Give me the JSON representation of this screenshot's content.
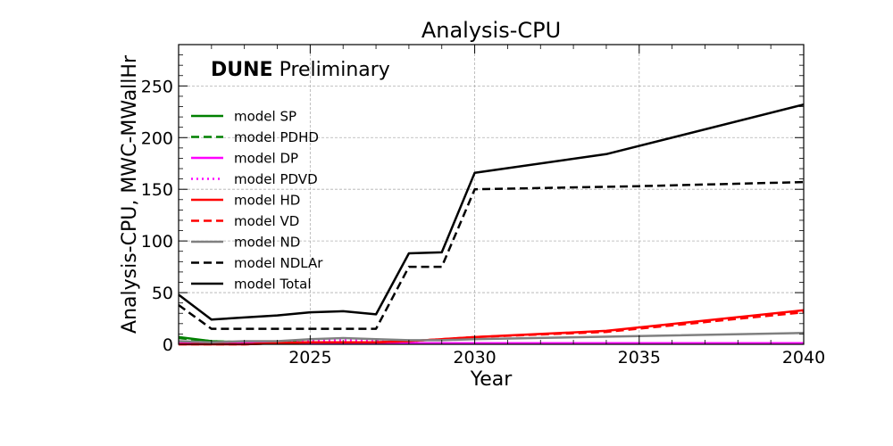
{
  "chart_data": {
    "type": "line",
    "title": "Analysis-CPU",
    "xlabel": "Year",
    "ylabel": "Analysis-CPU, MWC-MWallHr",
    "xlim": [
      2021,
      2040
    ],
    "ylim": [
      0,
      290
    ],
    "x_ticks": [
      2025,
      2030,
      2035,
      2040
    ],
    "y_ticks": [
      0,
      50,
      100,
      150,
      200,
      250
    ],
    "grid": true,
    "legend_position": "top-left",
    "annotation": {
      "bold": "DUNE",
      "rest": " Preliminary"
    },
    "series": [
      {
        "name": "model SP",
        "color": "#008000",
        "dash": "solid",
        "x": [
          2021,
          2022,
          2023,
          2024,
          2025,
          2026,
          2027,
          2028
        ],
        "y": [
          7,
          3,
          2,
          2,
          2,
          2,
          2,
          1
        ]
      },
      {
        "name": "model PDHD",
        "color": "#008000",
        "dash": "dashed",
        "x": [
          2021,
          2022,
          2023,
          2024,
          2025,
          2026,
          2027,
          2028
        ],
        "y": [
          6,
          3,
          2,
          2,
          2,
          2,
          2,
          1
        ]
      },
      {
        "name": "model DP",
        "color": "#ff00ff",
        "dash": "solid",
        "x": [
          2021,
          2022,
          2023,
          2024,
          2025,
          2026,
          2027,
          2028,
          2029,
          2030,
          2035,
          2040
        ],
        "y": [
          1,
          1,
          1,
          1,
          1,
          1,
          1,
          1,
          1,
          1,
          1,
          1
        ]
      },
      {
        "name": "model PDVD",
        "color": "#ff00ff",
        "dash": "dotted",
        "x": [
          2021,
          2022,
          2023,
          2024,
          2025,
          2026,
          2027,
          2028,
          2029,
          2030,
          2035,
          2040
        ],
        "y": [
          1,
          1,
          1,
          2,
          4,
          4,
          3,
          1,
          1,
          1,
          1,
          1
        ]
      },
      {
        "name": "model HD",
        "color": "#ff0000",
        "dash": "solid",
        "x": [
          2021,
          2022,
          2023,
          2024,
          2025,
          2026,
          2027,
          2028,
          2029,
          2030,
          2034,
          2040
        ],
        "y": [
          0,
          0,
          0,
          1,
          2,
          2,
          2,
          3,
          5,
          7,
          13,
          33
        ]
      },
      {
        "name": "model VD",
        "color": "#ff0000",
        "dash": "dashed",
        "x": [
          2021,
          2022,
          2023,
          2024,
          2025,
          2026,
          2027,
          2028,
          2029,
          2030,
          2034,
          2040
        ],
        "y": [
          0,
          0,
          0,
          1,
          2,
          2,
          2,
          3,
          5,
          7,
          12,
          31
        ]
      },
      {
        "name": "model ND",
        "color": "#808080",
        "dash": "solid",
        "x": [
          2021,
          2022,
          2023,
          2024,
          2025,
          2026,
          2027,
          2028,
          2029,
          2030,
          2035,
          2040
        ],
        "y": [
          3,
          2,
          3,
          3,
          5,
          6,
          5,
          4,
          4,
          5,
          8,
          11
        ]
      },
      {
        "name": "model NDLAr",
        "color": "#000000",
        "dash": "dashed",
        "x": [
          2021,
          2022,
          2023,
          2024,
          2025,
          2026,
          2027,
          2028,
          2029,
          2030,
          2035,
          2040
        ],
        "y": [
          38,
          15,
          15,
          15,
          15,
          15,
          15,
          75,
          75,
          150,
          153,
          157
        ]
      },
      {
        "name": "model Total",
        "color": "#000000",
        "dash": "solid",
        "x": [
          2021,
          2022,
          2023,
          2024,
          2025,
          2026,
          2027,
          2028,
          2029,
          2030,
          2034,
          2040
        ],
        "y": [
          48,
          24,
          26,
          28,
          31,
          32,
          29,
          88,
          89,
          166,
          184,
          232
        ]
      }
    ]
  }
}
